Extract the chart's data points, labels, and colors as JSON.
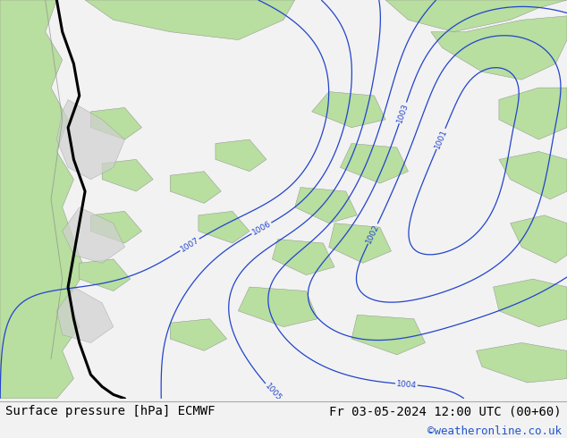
{
  "title_left": "Surface pressure [hPa] ECMWF",
  "title_right": "Fr 03-05-2024 12:00 UTC (00+60)",
  "credit": "©weatheronline.co.uk",
  "bg_color": "#f2f2f2",
  "sea_color": "#e8e8e8",
  "land_green": "#b8dea0",
  "land_gray": "#c8c8c8",
  "contour_blue": "#2244cc",
  "contour_red": "#cc0000",
  "contour_black": "#000000",
  "contour_gray": "#888888",
  "bottom_bar_color": "#dddddd",
  "credit_color": "#2255cc",
  "font_size_bottom": 10,
  "font_size_credit": 9,
  "figsize": [
    6.34,
    4.9
  ],
  "dpi": 100
}
